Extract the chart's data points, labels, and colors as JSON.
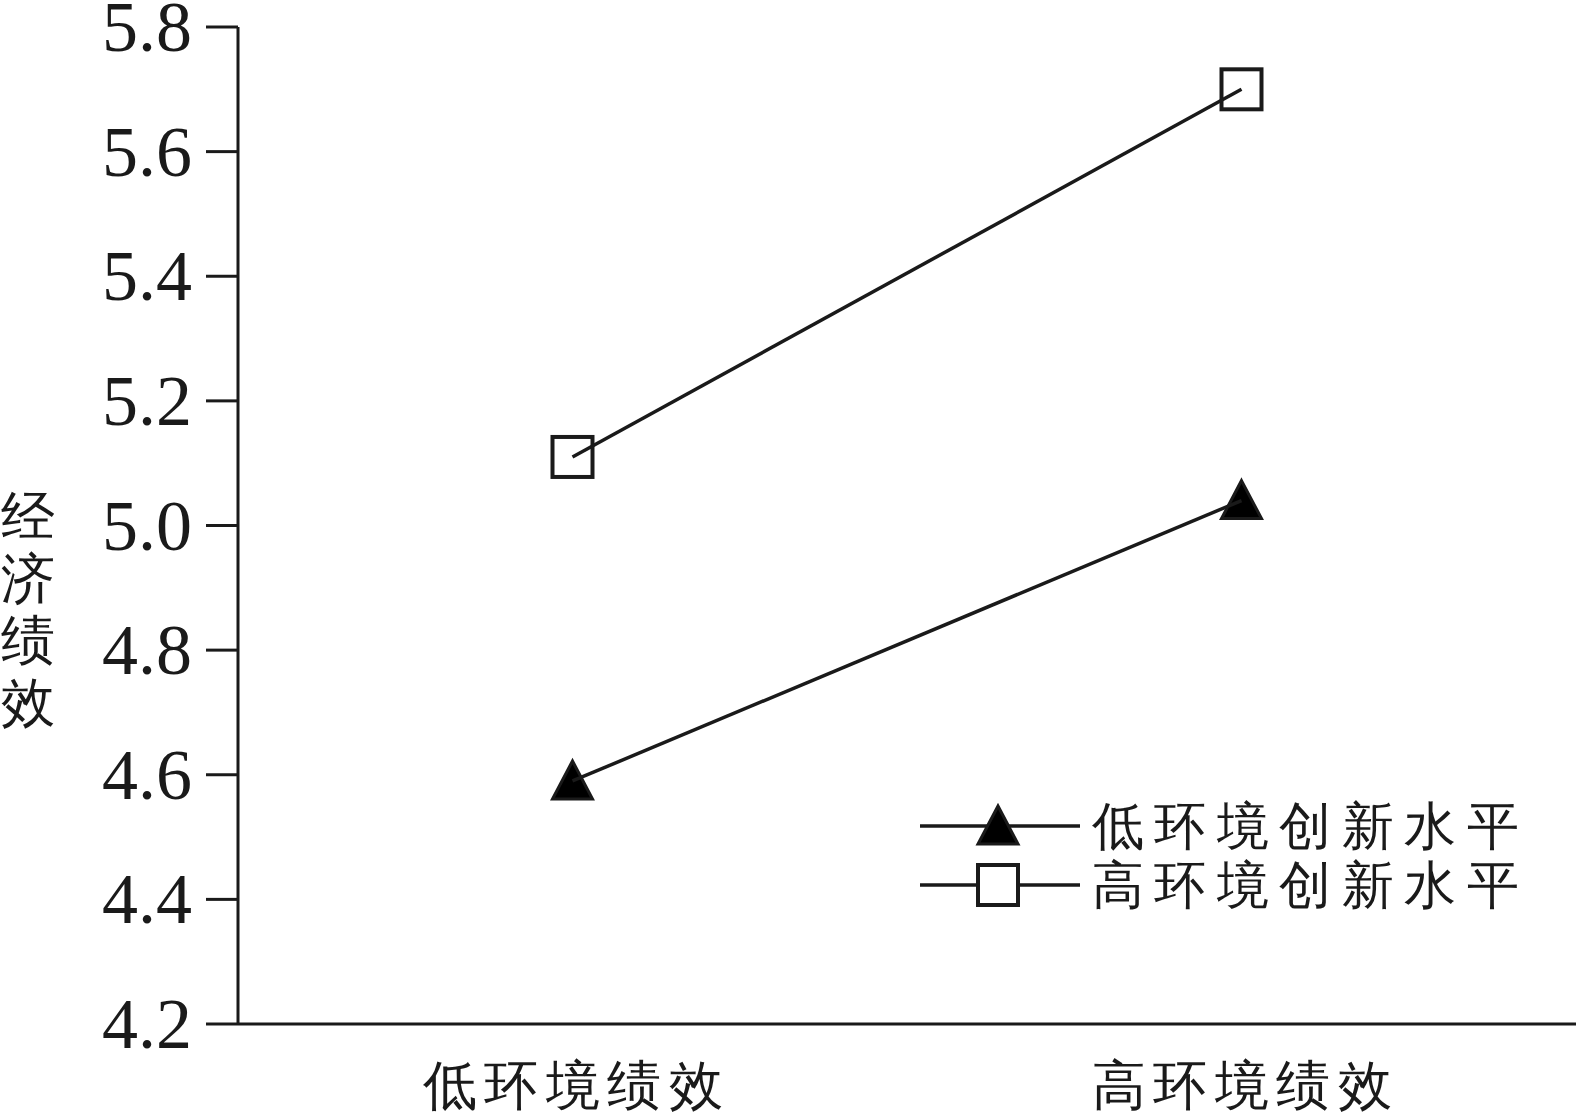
{
  "chart_data": {
    "type": "line",
    "ylabel": "经济绩效",
    "categories": [
      "低环境绩效",
      "高环境绩效"
    ],
    "series": [
      {
        "name": "低环境创新水平",
        "color": "#1a1a1a",
        "marker": "triangle",
        "values": [
          4.59,
          5.04
        ]
      },
      {
        "name": "高环境创新水平",
        "color": "#1a1a1a",
        "marker": "square",
        "values": [
          5.11,
          5.7
        ]
      }
    ],
    "ylim": [
      4.2,
      5.8
    ],
    "yticks": [
      4.2,
      4.4,
      4.6,
      4.8,
      {
        "value": 5,
        "label": "5.0"
      },
      5.2,
      5.4,
      5.6,
      5.8
    ],
    "grid": false,
    "legend": "bottom right",
    "line_style": "solid"
  }
}
